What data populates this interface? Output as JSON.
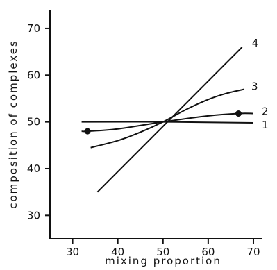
{
  "chart_data": {
    "type": "line",
    "xlabel": "mixing  proportion",
    "ylabel": "composition  of  complexes",
    "xlim": [
      25,
      72
    ],
    "ylim": [
      25,
      74
    ],
    "xticks": [
      30,
      40,
      50,
      60,
      70
    ],
    "yticks": [
      30,
      40,
      50,
      60,
      70
    ],
    "series": [
      {
        "name": "1",
        "points": [
          [
            32,
            50
          ],
          [
            50,
            50
          ],
          [
            70,
            49.8
          ]
        ],
        "markers": []
      },
      {
        "name": "2",
        "points": [
          [
            32,
            48
          ],
          [
            33.3,
            48
          ],
          [
            40,
            48.5
          ],
          [
            50,
            50
          ],
          [
            60,
            51.3
          ],
          [
            66.7,
            51.8
          ],
          [
            70,
            51.8
          ]
        ],
        "markers": [
          [
            33.3,
            48
          ],
          [
            66.7,
            51.8
          ]
        ]
      },
      {
        "name": "3",
        "points": [
          [
            34,
            44.5
          ],
          [
            40,
            46
          ],
          [
            45,
            47.8
          ],
          [
            50,
            50
          ],
          [
            55,
            52.6
          ],
          [
            60,
            54.8
          ],
          [
            64,
            56.1
          ],
          [
            68,
            57
          ]
        ],
        "markers": []
      },
      {
        "name": "4",
        "points": [
          [
            35.5,
            35
          ],
          [
            67.5,
            66
          ]
        ],
        "markers": []
      }
    ]
  }
}
